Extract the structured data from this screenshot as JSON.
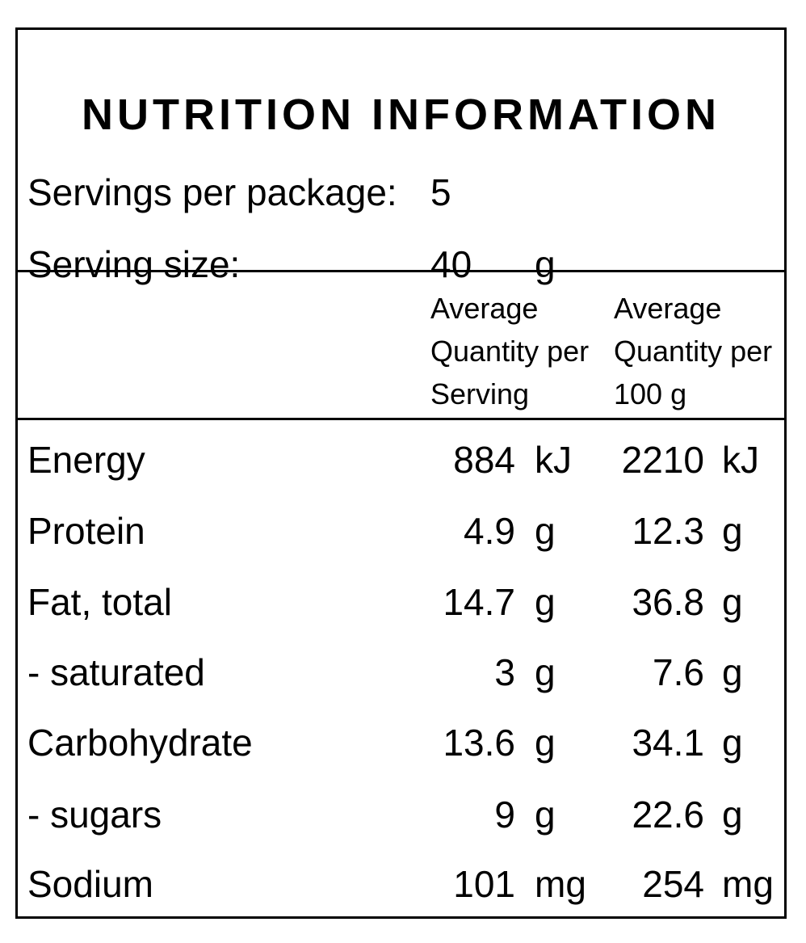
{
  "title": "NUTRITION INFORMATION",
  "servings_per_package": {
    "label": "Servings per package:",
    "value": "5"
  },
  "serving_size": {
    "label": "Serving size:",
    "value": "40",
    "unit": "g"
  },
  "columns": {
    "per_serving": [
      "Average",
      "Quantity per",
      "Serving"
    ],
    "per_100g": [
      "Average",
      "Quantity per",
      "100 g"
    ]
  },
  "nutrients": [
    {
      "name": "Energy",
      "serving_value": "884",
      "serving_unit": "kJ",
      "per100_value": "2210",
      "per100_unit": "kJ"
    },
    {
      "name": "Protein",
      "serving_value": "4.9",
      "serving_unit": "g",
      "per100_value": "12.3",
      "per100_unit": "g"
    },
    {
      "name": "Fat, total",
      "serving_value": "14.7",
      "serving_unit": "g",
      "per100_value": "36.8",
      "per100_unit": "g"
    },
    {
      "name": "- saturated",
      "serving_value": "3",
      "serving_unit": "g",
      "per100_value": "7.6",
      "per100_unit": "g"
    },
    {
      "name": "Carbohydrate",
      "serving_value": "13.6",
      "serving_unit": "g",
      "per100_value": "34.1",
      "per100_unit": "g"
    },
    {
      "name": "- sugars",
      "serving_value": "9",
      "serving_unit": "g",
      "per100_value": "22.6",
      "per100_unit": "g"
    },
    {
      "name": "Sodium",
      "serving_value": "101",
      "serving_unit": "mg",
      "per100_value": "254",
      "per100_unit": "mg"
    }
  ]
}
